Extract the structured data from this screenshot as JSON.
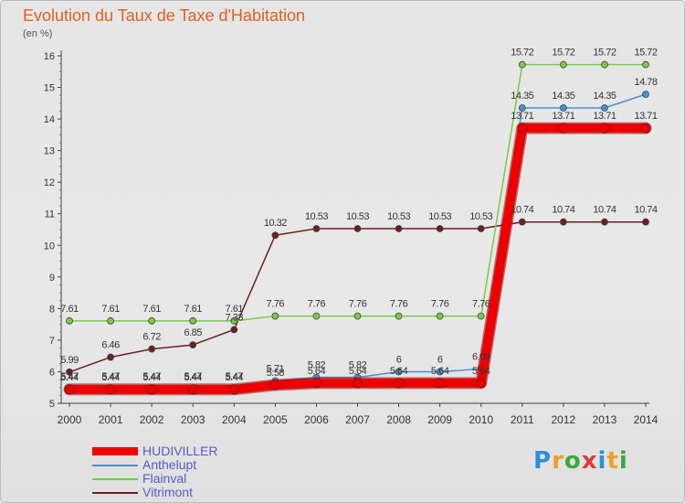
{
  "title": "Evolution du Taux de Taxe d'Habitation",
  "subtitle": "(en %)",
  "logo": {
    "p": "P",
    "r": "r",
    "o": "o",
    "x": "x",
    "i1": "i",
    "t": "t",
    "i2": "i"
  },
  "chart_data": {
    "type": "line",
    "title": "Evolution du Taux de Taxe d'Habitation",
    "ylabel": "(en %)",
    "xlabel": "",
    "ylim": [
      5,
      16
    ],
    "yticks": [
      5,
      6,
      7,
      8,
      9,
      10,
      11,
      12,
      13,
      14,
      15,
      16
    ],
    "grid": false,
    "legend_position": "bottom-left",
    "x": [
      "2000",
      "2001",
      "2002",
      "2003",
      "2004",
      "2005",
      "2006",
      "2007",
      "2008",
      "2009",
      "2010",
      "2011",
      "2012",
      "2013",
      "2014"
    ],
    "series": [
      {
        "name": "HUDIVILLER",
        "color": "#ee0000",
        "style": "thick",
        "values": [
          5.44,
          5.44,
          5.44,
          5.44,
          5.44,
          5.58,
          5.64,
          5.64,
          5.64,
          5.64,
          5.64,
          13.71,
          13.71,
          13.71,
          13.71
        ],
        "labels": [
          "5.44",
          "5.44",
          "5.44",
          "5.44",
          "5.44",
          "5.58",
          "5.64",
          "5.64",
          "5.64",
          "5.64",
          "5.64",
          "13.71",
          "13.71",
          "13.71",
          "13.71"
        ]
      },
      {
        "name": "Anthelupt",
        "color": "#4a90d0",
        "style": "thin",
        "values": [
          5.47,
          5.47,
          5.47,
          5.47,
          5.47,
          5.71,
          5.82,
          5.82,
          6,
          6,
          6.09,
          14.35,
          14.35,
          14.35,
          14.78
        ],
        "labels": [
          "5.47",
          "5.47",
          "5.47",
          "5.47",
          "5.47",
          "5.71",
          "5.82",
          "5.82",
          "6",
          "6",
          "6.09",
          "14.35",
          "14.35",
          "14.35",
          "14.78"
        ]
      },
      {
        "name": "Flainval",
        "color": "#77cc44",
        "style": "thin",
        "values": [
          7.61,
          7.61,
          7.61,
          7.61,
          7.61,
          7.76,
          7.76,
          7.76,
          7.76,
          7.76,
          7.76,
          15.72,
          15.72,
          15.72,
          15.72
        ],
        "labels": [
          "7.61",
          "7.61",
          "7.61",
          "7.61",
          "7.61",
          "7.76",
          "7.76",
          "7.76",
          "7.76",
          "7.76",
          "7.76",
          "15.72",
          "15.72",
          "15.72",
          "15.72"
        ]
      },
      {
        "name": "Vitrimont",
        "color": "#6b1f24",
        "style": "thin",
        "values": [
          5.99,
          6.46,
          6.72,
          6.85,
          7.33,
          10.32,
          10.53,
          10.53,
          10.53,
          10.53,
          10.53,
          10.74,
          10.74,
          10.74,
          10.74
        ],
        "labels": [
          "5.99",
          "6.46",
          "6.72",
          "6.85",
          "7.33",
          "10.32",
          "10.53",
          "10.53",
          "10.53",
          "10.53",
          "10.53",
          "10.74",
          "10.74",
          "10.74",
          "10.74"
        ]
      }
    ]
  }
}
